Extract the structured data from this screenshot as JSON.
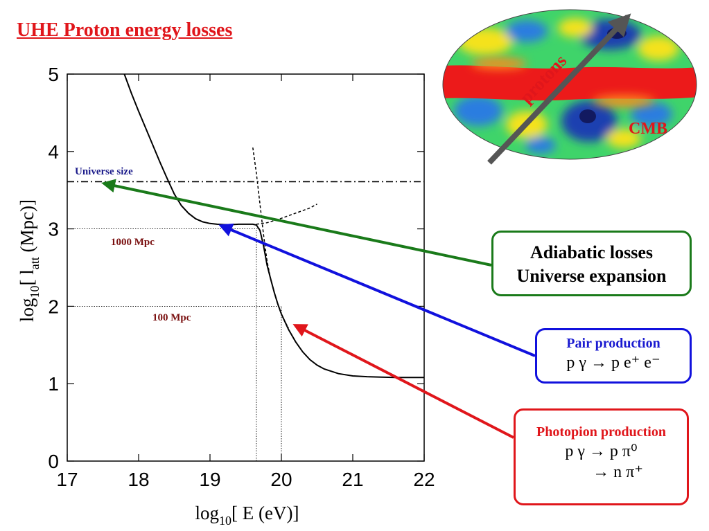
{
  "slide": {
    "title": "UHE Proton energy losses"
  },
  "colors": {
    "green": "#1a7a1a",
    "blue": "#1111dd",
    "red": "#e0161b",
    "dark_red": "#7a1010",
    "navy": "#1a1a8a",
    "curve": "#000000"
  },
  "chart_data": {
    "type": "line",
    "xlabel": "log10[ E (eV)]",
    "ylabel": "log10[ latt (Mpc)]",
    "xlim": [
      17,
      22
    ],
    "ylim": [
      0,
      5
    ],
    "xticks": [
      "17",
      "18",
      "19",
      "20",
      "21",
      "22"
    ],
    "yticks": [
      "0",
      "1",
      "2",
      "3",
      "4",
      "5"
    ],
    "grid": false,
    "series": [
      {
        "style": "solid",
        "x": [
          17.8,
          17.9,
          18.0,
          18.1,
          18.2,
          18.3,
          18.4,
          18.5,
          18.6,
          18.7,
          18.8,
          18.9,
          19.0,
          19.1,
          19.2,
          19.3,
          19.4,
          19.5,
          19.6,
          19.65,
          19.7,
          19.75,
          19.8,
          19.85,
          19.9,
          19.95,
          20.0,
          20.1,
          20.2,
          20.3,
          20.4,
          20.5,
          20.6,
          20.7,
          20.8,
          21.0,
          21.2,
          21.4,
          21.6,
          21.8,
          22.0
        ],
        "y": [
          5.0,
          4.75,
          4.52,
          4.3,
          4.08,
          3.86,
          3.65,
          3.45,
          3.3,
          3.2,
          3.13,
          3.09,
          3.07,
          3.06,
          3.055,
          3.055,
          3.06,
          3.06,
          3.06,
          3.05,
          2.98,
          2.78,
          2.53,
          2.35,
          2.18,
          2.03,
          1.9,
          1.7,
          1.54,
          1.41,
          1.31,
          1.24,
          1.19,
          1.16,
          1.13,
          1.1,
          1.09,
          1.085,
          1.08,
          1.08,
          1.08
        ]
      },
      {
        "style": "dashed",
        "x": [
          19.6,
          19.65,
          19.7,
          19.75,
          19.8,
          19.85,
          19.9,
          19.95,
          20.0,
          20.05,
          20.1
        ],
        "y": [
          4.05,
          3.72,
          3.32,
          2.92,
          2.58,
          2.35,
          2.18,
          2.03,
          1.9,
          1.8,
          1.72
        ]
      },
      {
        "style": "dashed",
        "x": [
          19.65,
          19.8,
          19.95,
          20.1,
          20.25,
          20.4,
          20.5
        ],
        "y": [
          3.06,
          3.08,
          3.12,
          3.17,
          3.22,
          3.27,
          3.32
        ]
      }
    ],
    "reference_lines": [
      {
        "axis": "y",
        "value": 3.61,
        "style": "dashdot",
        "label": "Universe  size"
      },
      {
        "axis": "y",
        "value": 3.0,
        "style": "dotted",
        "label": "1000 Mpc",
        "x_end": 19.7
      },
      {
        "axis": "y",
        "value": 2.0,
        "style": "dotted",
        "label": "100 Mpc",
        "x_end": 20.0
      },
      {
        "axis": "x",
        "value": 19.65,
        "style": "dotted",
        "y_end": 3.0
      },
      {
        "axis": "x",
        "value": 20.0,
        "style": "dotted",
        "y_end": 2.0
      }
    ]
  },
  "annotations": {
    "adiabatic": {
      "line1": "Adiabatic losses",
      "line2": "Universe expansion"
    },
    "pair": {
      "heading": "Pair production",
      "formula": "p γ  →   p e⁺ e⁻"
    },
    "photopion": {
      "heading": "Photopion production",
      "formula1": "p γ →  p π⁰",
      "formula2": "→  n π⁺"
    }
  },
  "cmb_map": {
    "label": "CMB",
    "arrow_label": "protons"
  }
}
